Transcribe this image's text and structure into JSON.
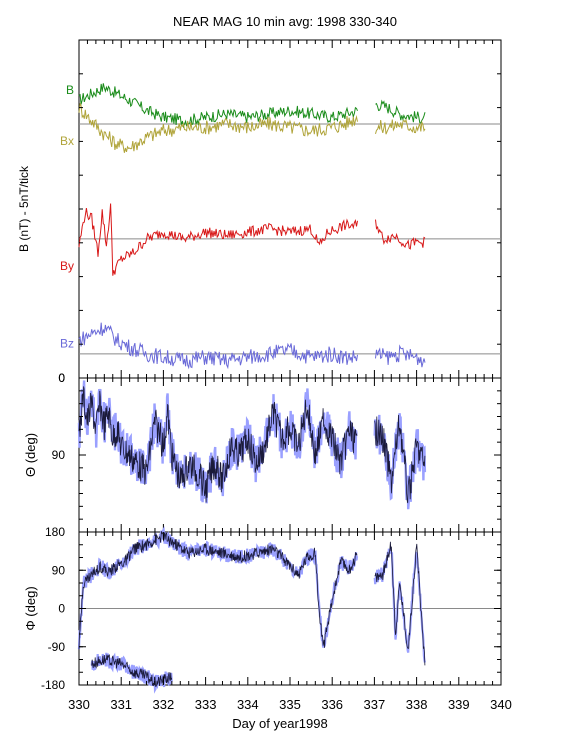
{
  "title": "NEAR MAG 10 min avg: 1998 330-340",
  "xlabel": "Day of year1998",
  "colors": {
    "B": "#1a8c1a",
    "Bx": "#b0a43a",
    "By": "#d81818",
    "Bz": "#6a6ad8",
    "angle": "#1a1a3a",
    "angle_band": "#9aa0ff",
    "frame": "#000000",
    "zero_line": "#8a8a8a"
  },
  "chart_data": [
    {
      "type": "line",
      "ylabel": "B  (nT) - 5nT/tick",
      "x_range": [
        330,
        340
      ],
      "x_ticks": [
        "330",
        "331",
        "332",
        "333",
        "334",
        "335",
        "336",
        "337",
        "338",
        "339",
        "340"
      ],
      "y_tick_labels": [
        {
          "label": "0",
          "value": 0
        }
      ],
      "grid": false,
      "gap": [
        336.6,
        337.0
      ],
      "data_end": 338.2,
      "series": [
        {
          "name": "B",
          "baseline_nT": 0,
          "label_offset": 5,
          "x": [
            330,
            330.3,
            330.6,
            330.9,
            331.2,
            331.6,
            332,
            332.5,
            333,
            333.5,
            334,
            334.5,
            335,
            335.5,
            336,
            336.3,
            336.6,
            337,
            337.3,
            337.6,
            338,
            338.2
          ],
          "y": [
            3.5,
            4.5,
            5.5,
            4.5,
            3.5,
            2,
            1,
            0.5,
            1,
            1.5,
            1,
            1.5,
            2,
            1.5,
            1,
            1.5,
            2,
            3,
            2.5,
            1.5,
            1,
            1
          ]
        },
        {
          "name": "Bx",
          "baseline_nT": 0,
          "label_offset": -2.5,
          "x": [
            330,
            330.3,
            330.6,
            330.9,
            331.2,
            331.6,
            332,
            332.5,
            333,
            333.5,
            334,
            334.5,
            335,
            335.5,
            336,
            336.3,
            336.6,
            337,
            337.3,
            337.6,
            338,
            338.2
          ],
          "y": [
            2.5,
            0.5,
            -1.5,
            -3,
            -3.5,
            -2,
            -1,
            -0.5,
            -0.5,
            0,
            -0.5,
            0,
            -0.5,
            -1,
            -0.5,
            0,
            1,
            -0.5,
            -0.5,
            0,
            -0.5,
            -0.5
          ]
        },
        {
          "name": "By",
          "baseline_nT": -17,
          "label_offset": -4,
          "x": [
            330,
            330.15,
            330.3,
            330.45,
            330.55,
            330.65,
            330.75,
            330.8,
            331,
            331.3,
            331.6,
            332,
            332.5,
            333,
            333.5,
            334,
            334.5,
            335,
            335.5,
            335.7,
            335.9,
            336.3,
            336.6,
            337,
            337.2,
            337.5,
            337.8,
            338,
            338.2
          ],
          "y": [
            -1,
            4,
            3,
            -2,
            4,
            -1,
            5,
            -5,
            -3,
            -2,
            0,
            1,
            0,
            1,
            0.5,
            1,
            1.5,
            1,
            1.5,
            -1,
            1,
            2,
            2,
            3,
            0,
            0.5,
            -1,
            -0.5,
            -0.5
          ]
        },
        {
          "name": "Bz",
          "baseline_nT": -34,
          "label_offset": 1.5,
          "x": [
            330,
            330.3,
            330.6,
            330.9,
            331.2,
            331.6,
            332,
            332.5,
            333,
            333.5,
            334,
            334.5,
            335,
            335.5,
            336,
            336.3,
            336.6,
            337,
            337.3,
            337.6,
            338,
            338.2
          ],
          "y": [
            2,
            3,
            4,
            2,
            1,
            0,
            -0.5,
            -1,
            -0.5,
            -1,
            -0.5,
            0,
            0.5,
            -0.5,
            0,
            -0.5,
            -0.5,
            0,
            -0.5,
            0,
            -0.5,
            -1
          ]
        }
      ]
    },
    {
      "type": "line",
      "ylabel": "Θ (deg)",
      "x_range": [
        330,
        340
      ],
      "y_range": [
        0,
        180
      ],
      "y_ticks": [
        0,
        90
      ],
      "grid": false,
      "gap": [
        336.6,
        337.0
      ],
      "data_end": 338.2,
      "series": [
        {
          "x": [
            330,
            330.1,
            330.2,
            330.3,
            330.4,
            330.5,
            330.6,
            330.7,
            330.8,
            330.9,
            331,
            331.2,
            331.4,
            331.6,
            331.8,
            332,
            332.1,
            332.2,
            332.4,
            332.6,
            332.8,
            333,
            333.2,
            333.4,
            333.6,
            333.8,
            334,
            334.2,
            334.4,
            334.6,
            334.8,
            335,
            335.2,
            335.4,
            335.6,
            335.8,
            336,
            336.2,
            336.4,
            336.6,
            337,
            337.2,
            337.4,
            337.6,
            337.8,
            338,
            338.2
          ],
          "y": [
            70,
            20,
            50,
            30,
            60,
            30,
            55,
            40,
            70,
            60,
            80,
            90,
            100,
            110,
            50,
            80,
            40,
            90,
            120,
            100,
            110,
            130,
            100,
            120,
            80,
            90,
            70,
            100,
            80,
            40,
            70,
            60,
            80,
            30,
            90,
            50,
            70,
            100,
            60,
            80,
            60,
            70,
            120,
            50,
            140,
            80,
            100
          ]
        }
      ]
    },
    {
      "type": "line",
      "ylabel": "Φ (deg)",
      "x_range": [
        330,
        340
      ],
      "y_range": [
        -180,
        180
      ],
      "y_ticks": [
        -180,
        -90,
        0,
        90,
        180
      ],
      "grid": false,
      "gap": [
        336.6,
        337.0
      ],
      "data_end": 338.2,
      "series": [
        {
          "x": [
            330,
            330.1,
            330.2,
            330.3,
            330.5,
            330.7,
            330.9,
            331.1,
            331.3,
            331.6,
            331.8,
            332,
            332.3,
            332.6,
            333,
            333.4,
            333.8,
            334.2,
            334.6,
            335,
            335.2,
            335.4,
            335.6,
            335.7,
            335.8,
            336,
            336.2,
            336.4,
            336.6,
            337,
            337.2,
            337.4,
            337.5,
            337.6,
            337.8,
            338,
            338.2
          ],
          "y": [
            -90,
            60,
            70,
            80,
            100,
            85,
            100,
            110,
            140,
            150,
            160,
            170,
            150,
            130,
            140,
            130,
            120,
            130,
            140,
            100,
            80,
            120,
            130,
            -20,
            -90,
            20,
            110,
            90,
            130,
            70,
            80,
            150,
            -60,
            60,
            -100,
            150,
            -140
          ]
        },
        {
          "x": [
            330.3,
            330.6,
            331,
            331.3,
            331.6,
            331.8,
            332.2
          ],
          "y": [
            -130,
            -120,
            -130,
            -150,
            -160,
            -175,
            -160
          ]
        }
      ]
    }
  ]
}
